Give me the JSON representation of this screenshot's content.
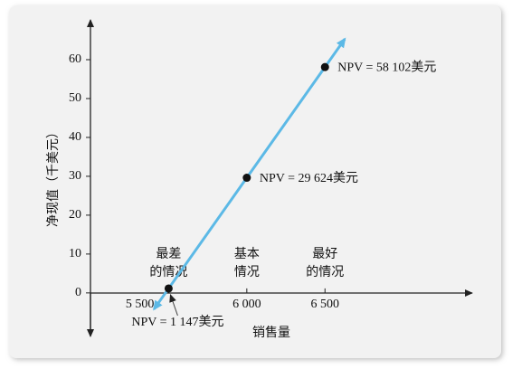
{
  "chart_data": {
    "type": "line",
    "x_label": "销售量",
    "y_label": "净现值（千美元）",
    "x": [
      5500,
      6000,
      6500
    ],
    "category_labels": [
      [
        "最差",
        "的情况"
      ],
      [
        "基本",
        "情况"
      ],
      [
        "最好",
        "的情况"
      ]
    ],
    "series": [
      {
        "color": "#5cb9e6",
        "values": [
          1.147,
          29.624,
          58.102
        ],
        "value_labels": [
          "NPV = 1 147美元",
          "NPV = 29 624美元",
          "NPV = 58 102美元"
        ]
      }
    ],
    "xlim": [
      5000,
      7430
    ],
    "ylim": [
      -10.5,
      70
    ],
    "xticks": [
      {
        "value": 5500,
        "label": "5 500"
      },
      {
        "value": 6000,
        "label": "6 000"
      },
      {
        "value": 6500,
        "label": "6 500"
      }
    ],
    "yticks": [
      0,
      10,
      20,
      30,
      40,
      50,
      60
    ]
  }
}
